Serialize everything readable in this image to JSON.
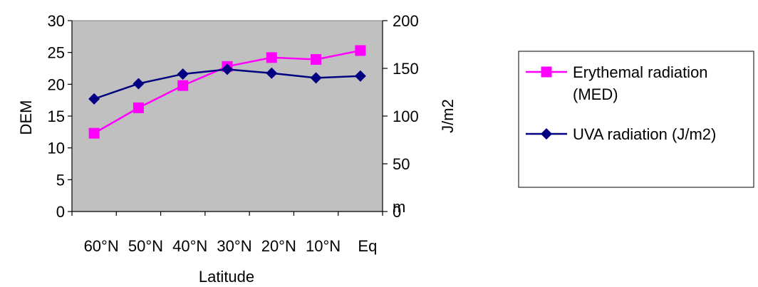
{
  "chart_data": {
    "type": "line",
    "categories": [
      "60°N",
      "50°N",
      "40°N",
      "30°N",
      "20°N",
      "10°N",
      "Eq"
    ],
    "xlabel": "Latitude",
    "ylabel": "DEM",
    "y2label": "J/m2",
    "y2_stray_label": "m",
    "ylim": [
      0,
      30
    ],
    "y2lim": [
      0,
      200
    ],
    "yticks": [
      "0",
      "5",
      "10",
      "15",
      "20",
      "25",
      "30"
    ],
    "y2ticks": [
      "0",
      "50",
      "100",
      "150",
      "200"
    ],
    "plot_background": "#c0c0c0",
    "grid": false,
    "legend_position": "right",
    "series": [
      {
        "name": "Erythemal radiation (MED)",
        "legend_lines": [
          "Erythemal radiation",
          "(MED)"
        ],
        "axis": "left",
        "marker": "square",
        "color": "#ff00ff",
        "values": [
          12.3,
          16.3,
          19.8,
          22.8,
          24.2,
          23.9,
          25.3
        ]
      },
      {
        "name": "UVA radiation (J/m2)",
        "legend_lines": [
          "UVA radiation (J/m2)"
        ],
        "axis": "right",
        "marker": "diamond",
        "color": "#000080",
        "values": [
          118,
          134,
          144,
          149,
          145,
          140,
          142
        ]
      }
    ]
  }
}
